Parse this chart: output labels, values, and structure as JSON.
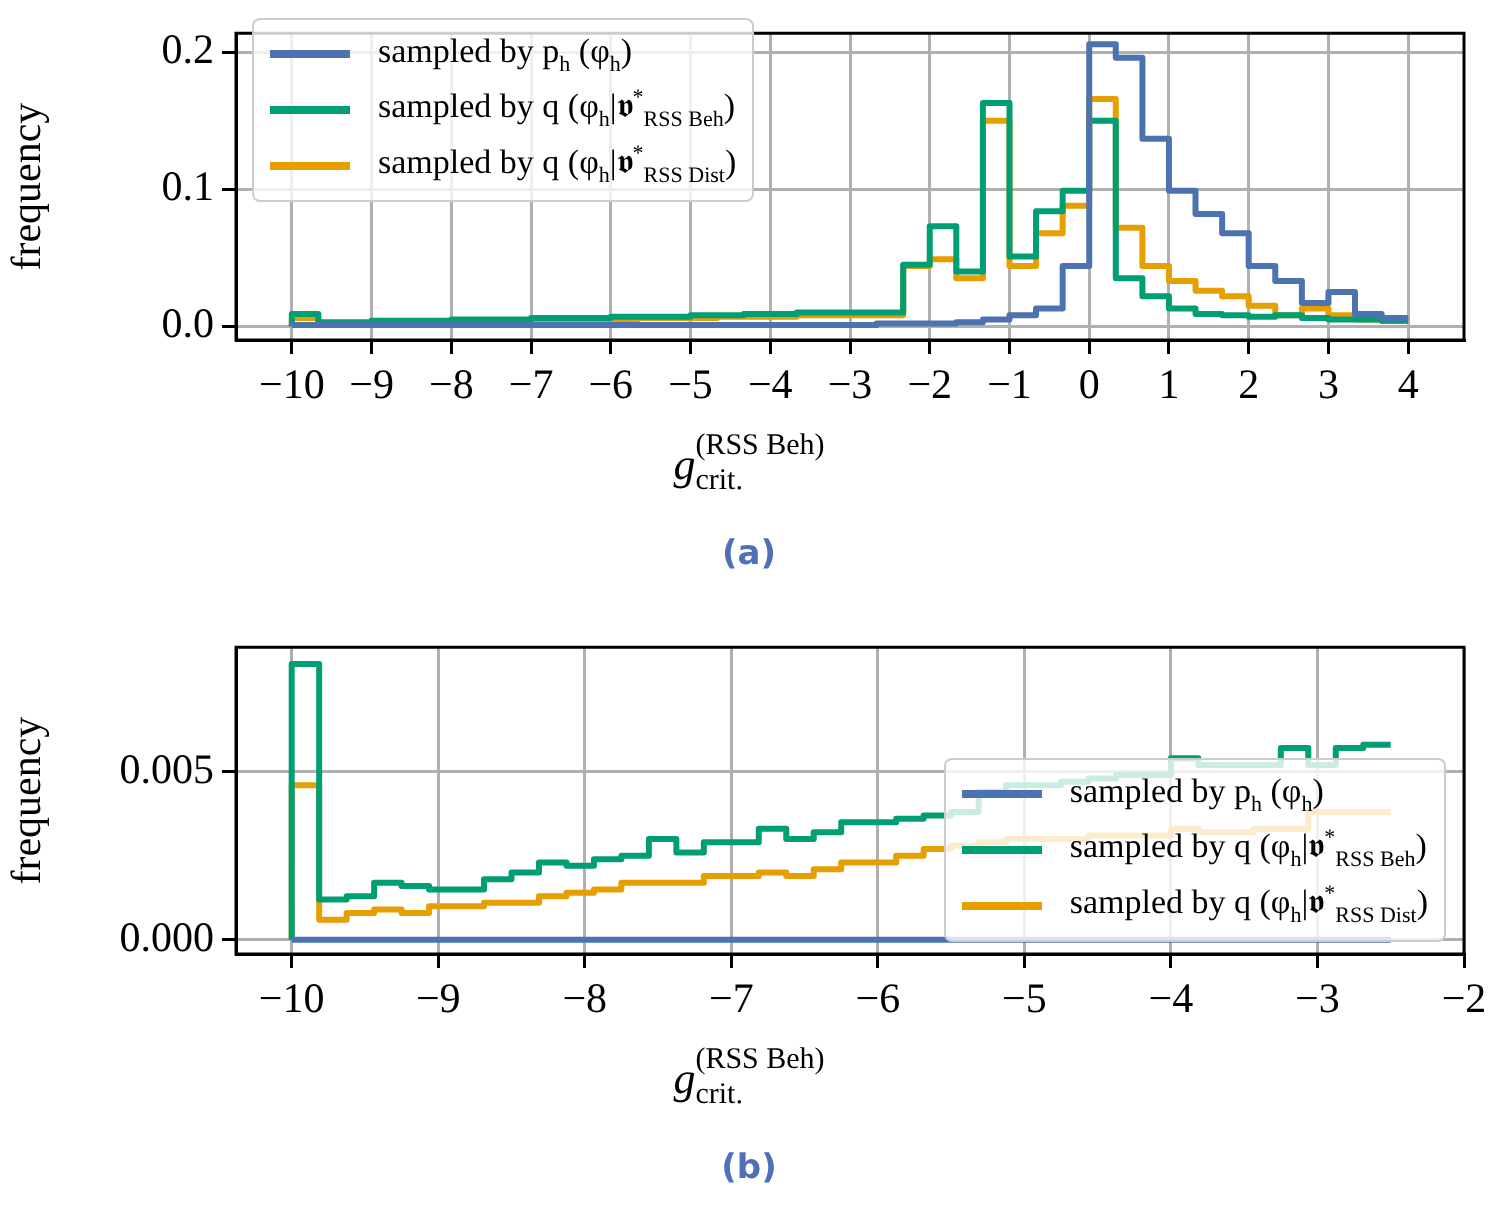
{
  "chart_data": [
    {
      "type": "histogram",
      "xlabel": "g$_{crit.}$$^{(RSS Beh)}$",
      "ylabel": "frequency",
      "annotations": [
        "(a)"
      ],
      "bins": [
        -10,
        -9.667,
        -9.333,
        -9,
        -8.667,
        -8.333,
        -8,
        -7.667,
        -7.333,
        -7,
        -6.667,
        -6.333,
        -6,
        -5.667,
        -5.333,
        -5,
        -4.667,
        -4.333,
        -4,
        -3.667,
        -3.333,
        -3,
        -2.667,
        -2.333,
        -2,
        -1.667,
        -1.333,
        -1,
        -0.667,
        -0.333,
        0,
        0.333,
        0.667,
        1,
        1.333,
        1.667,
        2,
        2.333,
        2.667,
        3,
        3.333,
        3.667,
        4
      ],
      "series": [
        {
          "name": "sampled by p$_{h}$ (φ$_{h}$)",
          "color": "#4c72b0",
          "values": [
            0.001,
            0.001,
            0.001,
            0.001,
            0.001,
            0.001,
            0.001,
            0.001,
            0.001,
            0.001,
            0.001,
            0.001,
            0.001,
            0.001,
            0.001,
            0.001,
            0.001,
            0.001,
            0.001,
            0.001,
            0.001,
            0.001,
            0.002,
            0.002,
            0.002,
            0.003,
            0.005,
            0.008,
            0.013,
            0.044,
            0.206,
            0.196,
            0.137,
            0.099,
            0.082,
            0.068,
            0.044,
            0.033,
            0.017,
            0.025,
            0.009,
            0.006
          ]
        },
        {
          "name": "sampled by q (φ$_{h}$|𝖛$^{*}$$_{RSS Beh}$)",
          "color": "#029e73",
          "values": [
            0.009,
            0.003,
            0.003,
            0.004,
            0.004,
            0.004,
            0.005,
            0.005,
            0.005,
            0.006,
            0.006,
            0.006,
            0.007,
            0.007,
            0.007,
            0.008,
            0.008,
            0.009,
            0.009,
            0.01,
            0.01,
            0.01,
            0.01,
            0.045,
            0.073,
            0.04,
            0.163,
            0.051,
            0.084,
            0.099,
            0.15,
            0.035,
            0.022,
            0.013,
            0.009,
            0.008,
            0.007,
            0.008,
            0.006,
            0.005,
            0.005,
            0.004
          ]
        },
        {
          "name": "sampled by q (φ$_{h}$|𝖛$^{*}$$_{RSS Dist}$)",
          "color": "#e69f00",
          "values": [
            0.006,
            0.002,
            0.002,
            0.003,
            0.003,
            0.003,
            0.004,
            0.004,
            0.004,
            0.004,
            0.005,
            0.005,
            0.005,
            0.006,
            0.006,
            0.006,
            0.007,
            0.007,
            0.007,
            0.008,
            0.008,
            0.008,
            0.008,
            0.044,
            0.049,
            0.035,
            0.15,
            0.044,
            0.068,
            0.088,
            0.166,
            0.072,
            0.044,
            0.033,
            0.026,
            0.022,
            0.015,
            0.008,
            0.013,
            0.008,
            0.005,
            0.004
          ]
        }
      ],
      "xlim": [
        -10.7,
        4.7
      ],
      "ylim": [
        -0.01,
        0.214
      ],
      "xticks": [
        {
          "value": -10,
          "label": "−10"
        },
        {
          "value": -9,
          "label": "−9"
        },
        {
          "value": -8,
          "label": "−8"
        },
        {
          "value": -7,
          "label": "−7"
        },
        {
          "value": -6,
          "label": "−6"
        },
        {
          "value": -5,
          "label": "−5"
        },
        {
          "value": -4,
          "label": "−4"
        },
        {
          "value": -3,
          "label": "−3"
        },
        {
          "value": -2,
          "label": "−2"
        },
        {
          "value": -1,
          "label": "−1"
        },
        0,
        1,
        2,
        3,
        4
      ],
      "yticks": [
        {
          "value": 0,
          "label": "0.0"
        },
        {
          "value": 0.1,
          "label": "0.1"
        },
        {
          "value": 0.2,
          "label": "0.2"
        }
      ],
      "grid": true,
      "legend": "top left"
    },
    {
      "type": "histogram",
      "xlabel": "g$_{crit.}$$^{(RSS Beh)}$",
      "ylabel": "frequency",
      "annotations": [
        "(b)"
      ],
      "bins": [
        -10,
        -9.8125,
        -9.625,
        -9.4375,
        -9.25,
        -9.0625,
        -8.875,
        -8.6875,
        -8.5,
        -8.3125,
        -8.125,
        -7.9375,
        -7.75,
        -7.5625,
        -7.375,
        -7.1875,
        -7,
        -6.8125,
        -6.625,
        -6.4375,
        -6.25,
        -6.0625,
        -5.875,
        -5.6875,
        -5.5,
        -5.3125,
        -5.125,
        -4.9375,
        -4.75,
        -4.5625,
        -4.375,
        -4.1875,
        -4,
        -3.8125,
        -3.625,
        -3.4375,
        -3.25,
        -3.0625,
        -2.875,
        -2.6875,
        -2.5
      ],
      "series": [
        {
          "name": "sampled by p$_{h}$ (φ$_{h}$)",
          "color": "#4c72b0",
          "values": [
            0,
            0,
            0,
            0,
            0,
            0,
            0,
            0,
            0,
            0,
            0,
            0,
            0,
            0,
            0,
            0,
            0,
            0,
            0,
            0,
            0,
            0,
            0,
            0,
            0,
            0,
            0,
            0,
            0,
            0,
            0,
            0,
            0,
            0,
            0,
            0,
            0,
            0,
            0,
            0
          ]
        },
        {
          "name": "sampled by q (φ$_{h}$|𝖛$^{*}$$_{RSS Beh}$)",
          "color": "#029e73",
          "values": [
            0.0082,
            0.0012,
            0.0013,
            0.0017,
            0.0016,
            0.0015,
            0.0015,
            0.0018,
            0.002,
            0.0023,
            0.0022,
            0.0024,
            0.0025,
            0.003,
            0.0026,
            0.0029,
            0.0029,
            0.0033,
            0.003,
            0.0032,
            0.0035,
            0.0035,
            0.0036,
            0.0037,
            0.0038,
            0.0044,
            0.0046,
            0.0046,
            0.0047,
            0.0048,
            0.0049,
            0.0049,
            0.0054,
            0.0052,
            0.0052,
            0.0052,
            0.0057,
            0.0052,
            0.0057,
            0.0058
          ]
        },
        {
          "name": "sampled by q (φ$_{h}$|𝖛$^{*}$$_{RSS Dist}$)",
          "color": "#e69f00",
          "values": [
            0.0046,
            0.0006,
            0.0008,
            0.0009,
            0.0008,
            0.001,
            0.001,
            0.0011,
            0.0011,
            0.0013,
            0.0014,
            0.0015,
            0.0017,
            0.0017,
            0.0017,
            0.0019,
            0.0019,
            0.002,
            0.0019,
            0.0021,
            0.0023,
            0.0023,
            0.0025,
            0.0027,
            0.0028,
            0.0029,
            0.003,
            0.003,
            0.003,
            0.0031,
            0.0031,
            0.0031,
            0.0033,
            0.0032,
            0.0032,
            0.0033,
            0.0033,
            0.0038,
            0.0038,
            0.0038
          ]
        }
      ],
      "xlim": [
        -10.38,
        -2
      ],
      "ylim": [
        -0.00042,
        0.0087
      ],
      "xticks": [
        {
          "value": -10,
          "label": "−10"
        },
        {
          "value": -9,
          "label": "−9"
        },
        {
          "value": -8,
          "label": "−8"
        },
        {
          "value": -7,
          "label": "−7"
        },
        {
          "value": -6,
          "label": "−6"
        },
        {
          "value": -5,
          "label": "−5"
        },
        {
          "value": -4,
          "label": "−4"
        },
        {
          "value": -3,
          "label": "−3"
        },
        {
          "value": -2,
          "label": "−2"
        }
      ],
      "yticks": [
        {
          "value": 0,
          "label": "0.000"
        },
        {
          "value": 0.005,
          "label": "0.005"
        }
      ],
      "grid": true,
      "legend": "bottom right"
    }
  ]
}
